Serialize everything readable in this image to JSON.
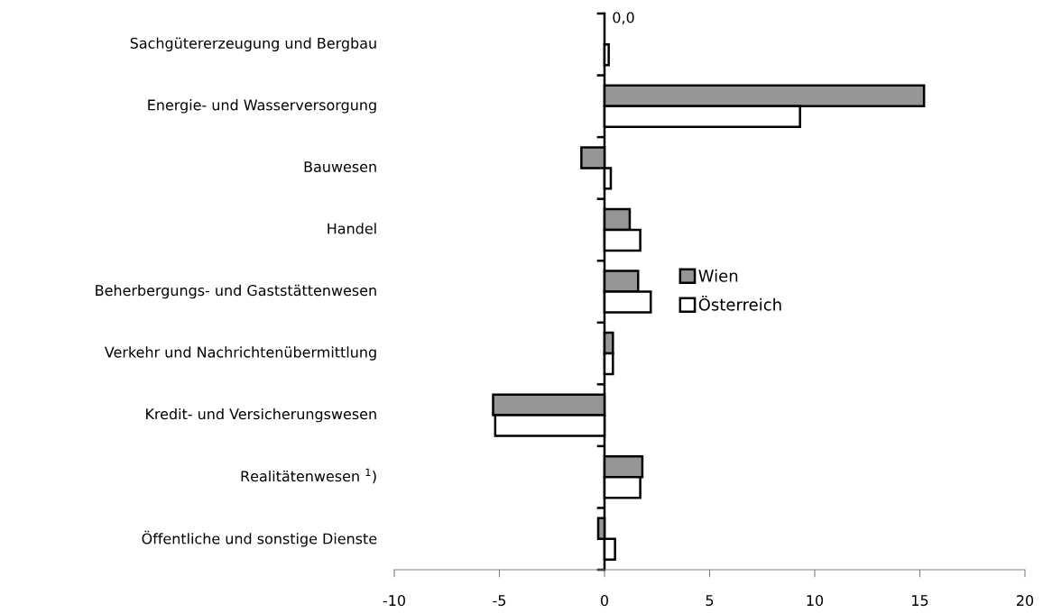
{
  "chart_data": {
    "type": "bar",
    "orientation": "horizontal",
    "categories": [
      "Sachgütererzeugung und Bergbau",
      "Energie- und Wasserversorgung",
      "Bauwesen",
      "Handel",
      "Beherbergungs- und Gaststättenwesen",
      "Verkehr und Nachrichtenübermittlung",
      "Kredit- und Versicherungswesen",
      "Realitätenwesen $^{1}$)",
      "Öffentliche und sonstige Dienste"
    ],
    "series": [
      {
        "name": "Wien",
        "color": "#969696",
        "values": [
          0.0,
          15.2,
          -1.1,
          1.2,
          1.6,
          0.4,
          -5.3,
          1.8,
          -0.3
        ]
      },
      {
        "name": "Österreich",
        "color": "#ffffff",
        "values": [
          0.2,
          9.3,
          0.3,
          1.7,
          2.2,
          0.4,
          -5.2,
          1.7,
          0.5
        ]
      }
    ],
    "xlim": [
      -10,
      20
    ],
    "xticks": [
      -10,
      -5,
      0,
      5,
      10,
      15,
      20
    ],
    "annotations": [
      {
        "text": "0,0",
        "x": 0,
        "y": "Sachgütererzeugung und Bergbau"
      }
    ],
    "legend": "right"
  }
}
